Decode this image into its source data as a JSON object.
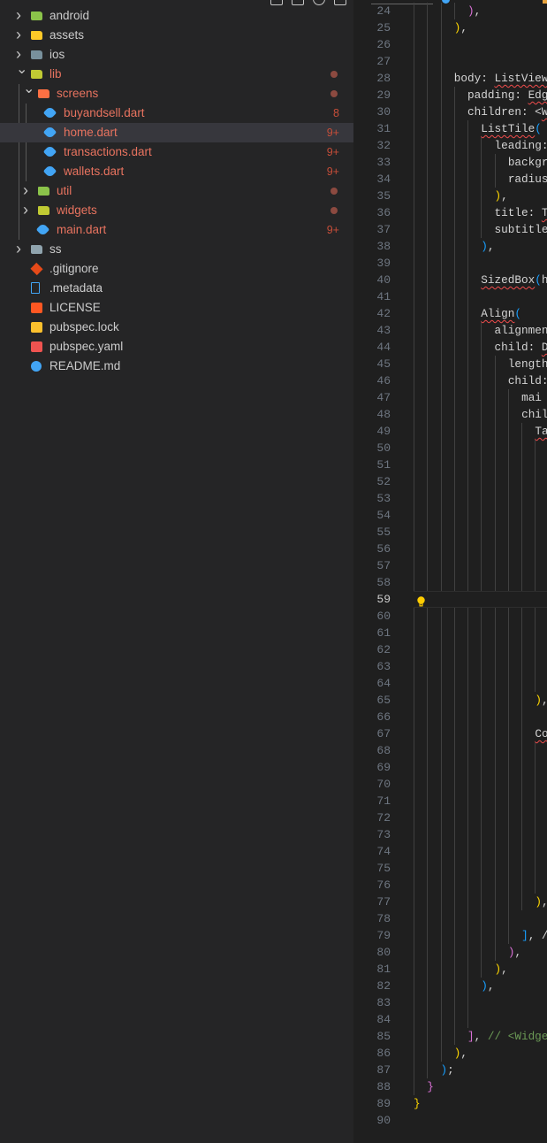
{
  "explorer": {
    "items": [
      {
        "label": "android",
        "depth": 0,
        "kind": "folder",
        "expanded": false,
        "icon": "android-folder-icon",
        "icon_color": "#8bc34a",
        "modified": false
      },
      {
        "label": "assets",
        "depth": 0,
        "kind": "folder",
        "expanded": false,
        "icon": "assets-folder-icon",
        "icon_color": "#ffca28",
        "modified": false
      },
      {
        "label": "ios",
        "depth": 0,
        "kind": "folder",
        "expanded": false,
        "icon": "ios-folder-icon",
        "icon_color": "#78909c",
        "modified": false
      },
      {
        "label": "lib",
        "depth": 0,
        "kind": "folder",
        "expanded": true,
        "icon": "lib-folder-icon",
        "icon_color": "#c0ca33",
        "modified": true,
        "dot": true
      },
      {
        "label": "screens",
        "depth": 1,
        "kind": "folder",
        "expanded": true,
        "icon": "screens-folder-icon",
        "icon_color": "#ff7043",
        "modified": true,
        "dot": true
      },
      {
        "label": "buyandsell.dart",
        "depth": 2,
        "kind": "file",
        "icon": "dart-file-icon",
        "icon_color": "#42a5f5",
        "modified": true,
        "badge": "8"
      },
      {
        "label": "home.dart",
        "depth": 2,
        "kind": "file",
        "icon": "dart-file-icon",
        "icon_color": "#42a5f5",
        "modified": true,
        "badge": "9+",
        "selected": true
      },
      {
        "label": "transactions.dart",
        "depth": 2,
        "kind": "file",
        "icon": "dart-file-icon",
        "icon_color": "#42a5f5",
        "modified": true,
        "badge": "9+"
      },
      {
        "label": "wallets.dart",
        "depth": 2,
        "kind": "file",
        "icon": "dart-file-icon",
        "icon_color": "#42a5f5",
        "modified": true,
        "badge": "9+"
      },
      {
        "label": "util",
        "depth": 1,
        "kind": "folder",
        "expanded": false,
        "icon": "util-folder-icon",
        "icon_color": "#8bc34a",
        "modified": true,
        "dot": true
      },
      {
        "label": "widgets",
        "depth": 1,
        "kind": "folder",
        "expanded": false,
        "icon": "widgets-folder-icon",
        "icon_color": "#c0ca33",
        "modified": true,
        "dot": true
      },
      {
        "label": "main.dart",
        "depth": 1,
        "kind": "file",
        "icon": "dart-file-icon",
        "icon_color": "#42a5f5",
        "modified": true,
        "badge": "9+",
        "flat": true
      },
      {
        "label": "ss",
        "depth": 0,
        "kind": "folder",
        "expanded": false,
        "icon": "folder-icon",
        "icon_color": "#90a4ae",
        "modified": false
      },
      {
        "label": ".gitignore",
        "depth": 0,
        "kind": "file",
        "icon": "git-icon",
        "icon_color": "#e64a19",
        "modified": false
      },
      {
        "label": ".metadata",
        "depth": 0,
        "kind": "file",
        "icon": "file-icon",
        "icon_color": "#42a5f5",
        "modified": false
      },
      {
        "label": "LICENSE",
        "depth": 0,
        "kind": "file",
        "icon": "license-icon",
        "icon_color": "#ff5722",
        "modified": false
      },
      {
        "label": "pubspec.lock",
        "depth": 0,
        "kind": "file",
        "icon": "lock-icon",
        "icon_color": "#fbc02d",
        "modified": false
      },
      {
        "label": "pubspec.yaml",
        "depth": 0,
        "kind": "file",
        "icon": "yaml-file-icon",
        "icon_color": "#ef5350",
        "modified": false
      },
      {
        "label": "README.md",
        "depth": 0,
        "kind": "file",
        "icon": "info-icon",
        "icon_color": "#42a5f5",
        "modified": false
      }
    ]
  },
  "editor": {
    "current_line": 59,
    "lightbulb_line": 59,
    "lines": [
      {
        "n": 24,
        "indent": 8,
        "t": [
          [
            ")",
            "b2"
          ],
          [
            ",",
            "p"
          ]
        ]
      },
      {
        "n": 25,
        "indent": 6,
        "t": [
          [
            ")",
            "b1"
          ],
          [
            ",",
            "p"
          ]
        ]
      },
      {
        "n": 26,
        "indent": 6,
        "t": []
      },
      {
        "n": 27,
        "indent": 6,
        "t": []
      },
      {
        "n": 28,
        "indent": 6,
        "t": [
          [
            "body: ",
            ""
          ],
          [
            "ListView",
            "sq"
          ]
        ]
      },
      {
        "n": 29,
        "indent": 8,
        "t": [
          [
            "padding: ",
            ""
          ],
          [
            "Edg",
            "sq"
          ]
        ]
      },
      {
        "n": 30,
        "indent": 8,
        "t": [
          [
            "children: <",
            ""
          ],
          [
            "W",
            "sq"
          ]
        ]
      },
      {
        "n": 31,
        "indent": 10,
        "t": [
          [
            "ListTile",
            "sq"
          ],
          [
            "(",
            "b3"
          ]
        ]
      },
      {
        "n": 32,
        "indent": 12,
        "t": [
          [
            "leading:",
            ""
          ]
        ]
      },
      {
        "n": 33,
        "indent": 14,
        "t": [
          [
            "backgr",
            ""
          ]
        ]
      },
      {
        "n": 34,
        "indent": 14,
        "t": [
          [
            "radius",
            ""
          ]
        ]
      },
      {
        "n": 35,
        "indent": 12,
        "t": [
          [
            ")",
            "b1"
          ],
          [
            ",",
            "p"
          ]
        ]
      },
      {
        "n": 36,
        "indent": 12,
        "t": [
          [
            "title: ",
            ""
          ],
          [
            "T",
            "sq"
          ]
        ]
      },
      {
        "n": 37,
        "indent": 12,
        "t": [
          [
            "subtitle",
            ""
          ]
        ]
      },
      {
        "n": 38,
        "indent": 10,
        "t": [
          [
            ")",
            "b3"
          ],
          [
            ",",
            "p"
          ]
        ]
      },
      {
        "n": 39,
        "indent": 10,
        "t": []
      },
      {
        "n": 40,
        "indent": 10,
        "t": [
          [
            "SizedBox",
            "sq"
          ],
          [
            "(",
            "b3"
          ],
          [
            "h",
            ""
          ]
        ]
      },
      {
        "n": 41,
        "indent": 10,
        "t": []
      },
      {
        "n": 42,
        "indent": 10,
        "t": [
          [
            "Align",
            "sq"
          ],
          [
            "(",
            "b3"
          ]
        ]
      },
      {
        "n": 43,
        "indent": 12,
        "t": [
          [
            "alignmen",
            ""
          ]
        ]
      },
      {
        "n": 44,
        "indent": 12,
        "t": [
          [
            "child: ",
            ""
          ],
          [
            "D",
            "sq"
          ]
        ]
      },
      {
        "n": 45,
        "indent": 14,
        "t": [
          [
            "length",
            ""
          ]
        ]
      },
      {
        "n": 46,
        "indent": 14,
        "t": [
          [
            "child:",
            ""
          ]
        ]
      },
      {
        "n": 47,
        "indent": 16,
        "t": [
          [
            "mai",
            ""
          ]
        ]
      },
      {
        "n": 48,
        "indent": 16,
        "t": [
          [
            "chil",
            ""
          ]
        ]
      },
      {
        "n": 49,
        "indent": 18,
        "t": [
          [
            "Ta",
            "sq"
          ]
        ]
      },
      {
        "n": 50,
        "indent": 20,
        "t": []
      },
      {
        "n": 51,
        "indent": 20,
        "t": []
      },
      {
        "n": 52,
        "indent": 20,
        "t": []
      },
      {
        "n": 53,
        "indent": 20,
        "t": []
      },
      {
        "n": 54,
        "indent": 20,
        "t": []
      },
      {
        "n": 55,
        "indent": 20,
        "t": []
      },
      {
        "n": 56,
        "indent": 20,
        "t": []
      },
      {
        "n": 57,
        "indent": 20,
        "t": []
      },
      {
        "n": 58,
        "indent": 20,
        "t": []
      },
      {
        "n": 59,
        "indent": 0,
        "t": []
      },
      {
        "n": 60,
        "indent": 20,
        "t": []
      },
      {
        "n": 61,
        "indent": 20,
        "t": []
      },
      {
        "n": 62,
        "indent": 20,
        "t": []
      },
      {
        "n": 63,
        "indent": 20,
        "t": []
      },
      {
        "n": 64,
        "indent": 20,
        "t": []
      },
      {
        "n": 65,
        "indent": 18,
        "t": [
          [
            ")",
            "b1"
          ],
          [
            ",",
            "p"
          ]
        ]
      },
      {
        "n": 66,
        "indent": 18,
        "t": []
      },
      {
        "n": 67,
        "indent": 18,
        "t": [
          [
            "Co",
            "sq"
          ]
        ]
      },
      {
        "n": 68,
        "indent": 20,
        "t": []
      },
      {
        "n": 69,
        "indent": 20,
        "t": []
      },
      {
        "n": 70,
        "indent": 20,
        "t": []
      },
      {
        "n": 71,
        "indent": 20,
        "t": []
      },
      {
        "n": 72,
        "indent": 20,
        "t": []
      },
      {
        "n": 73,
        "indent": 20,
        "t": []
      },
      {
        "n": 74,
        "indent": 20,
        "t": []
      },
      {
        "n": 75,
        "indent": 20,
        "t": []
      },
      {
        "n": 76,
        "indent": 20,
        "t": []
      },
      {
        "n": 77,
        "indent": 18,
        "t": [
          [
            ")",
            "b1"
          ],
          [
            ",",
            "p"
          ]
        ]
      },
      {
        "n": 78,
        "indent": 16,
        "t": []
      },
      {
        "n": 79,
        "indent": 16,
        "t": [
          [
            "]",
            "b3"
          ],
          [
            ", /",
            "p"
          ]
        ]
      },
      {
        "n": 80,
        "indent": 14,
        "t": [
          [
            ")",
            "b2"
          ],
          [
            ",",
            "p"
          ]
        ]
      },
      {
        "n": 81,
        "indent": 12,
        "t": [
          [
            ")",
            "b1"
          ],
          [
            ",",
            "p"
          ]
        ]
      },
      {
        "n": 82,
        "indent": 10,
        "t": [
          [
            ")",
            "b3"
          ],
          [
            ",",
            "p"
          ]
        ]
      },
      {
        "n": 83,
        "indent": 10,
        "t": []
      },
      {
        "n": 84,
        "indent": 10,
        "t": []
      },
      {
        "n": 85,
        "indent": 8,
        "t": [
          [
            "]",
            "b2"
          ],
          [
            ", ",
            "p"
          ],
          [
            "// <Widge",
            "cm"
          ]
        ]
      },
      {
        "n": 86,
        "indent": 6,
        "t": [
          [
            ")",
            "b1"
          ],
          [
            ",",
            "p"
          ]
        ]
      },
      {
        "n": 87,
        "indent": 4,
        "t": [
          [
            ")",
            "b3"
          ],
          [
            ";",
            "p"
          ]
        ]
      },
      {
        "n": 88,
        "indent": 2,
        "t": [
          [
            "}",
            "b2"
          ]
        ]
      },
      {
        "n": 89,
        "indent": 0,
        "t": [
          [
            "}",
            "b1"
          ]
        ]
      },
      {
        "n": 90,
        "indent": 0,
        "t": []
      }
    ]
  }
}
